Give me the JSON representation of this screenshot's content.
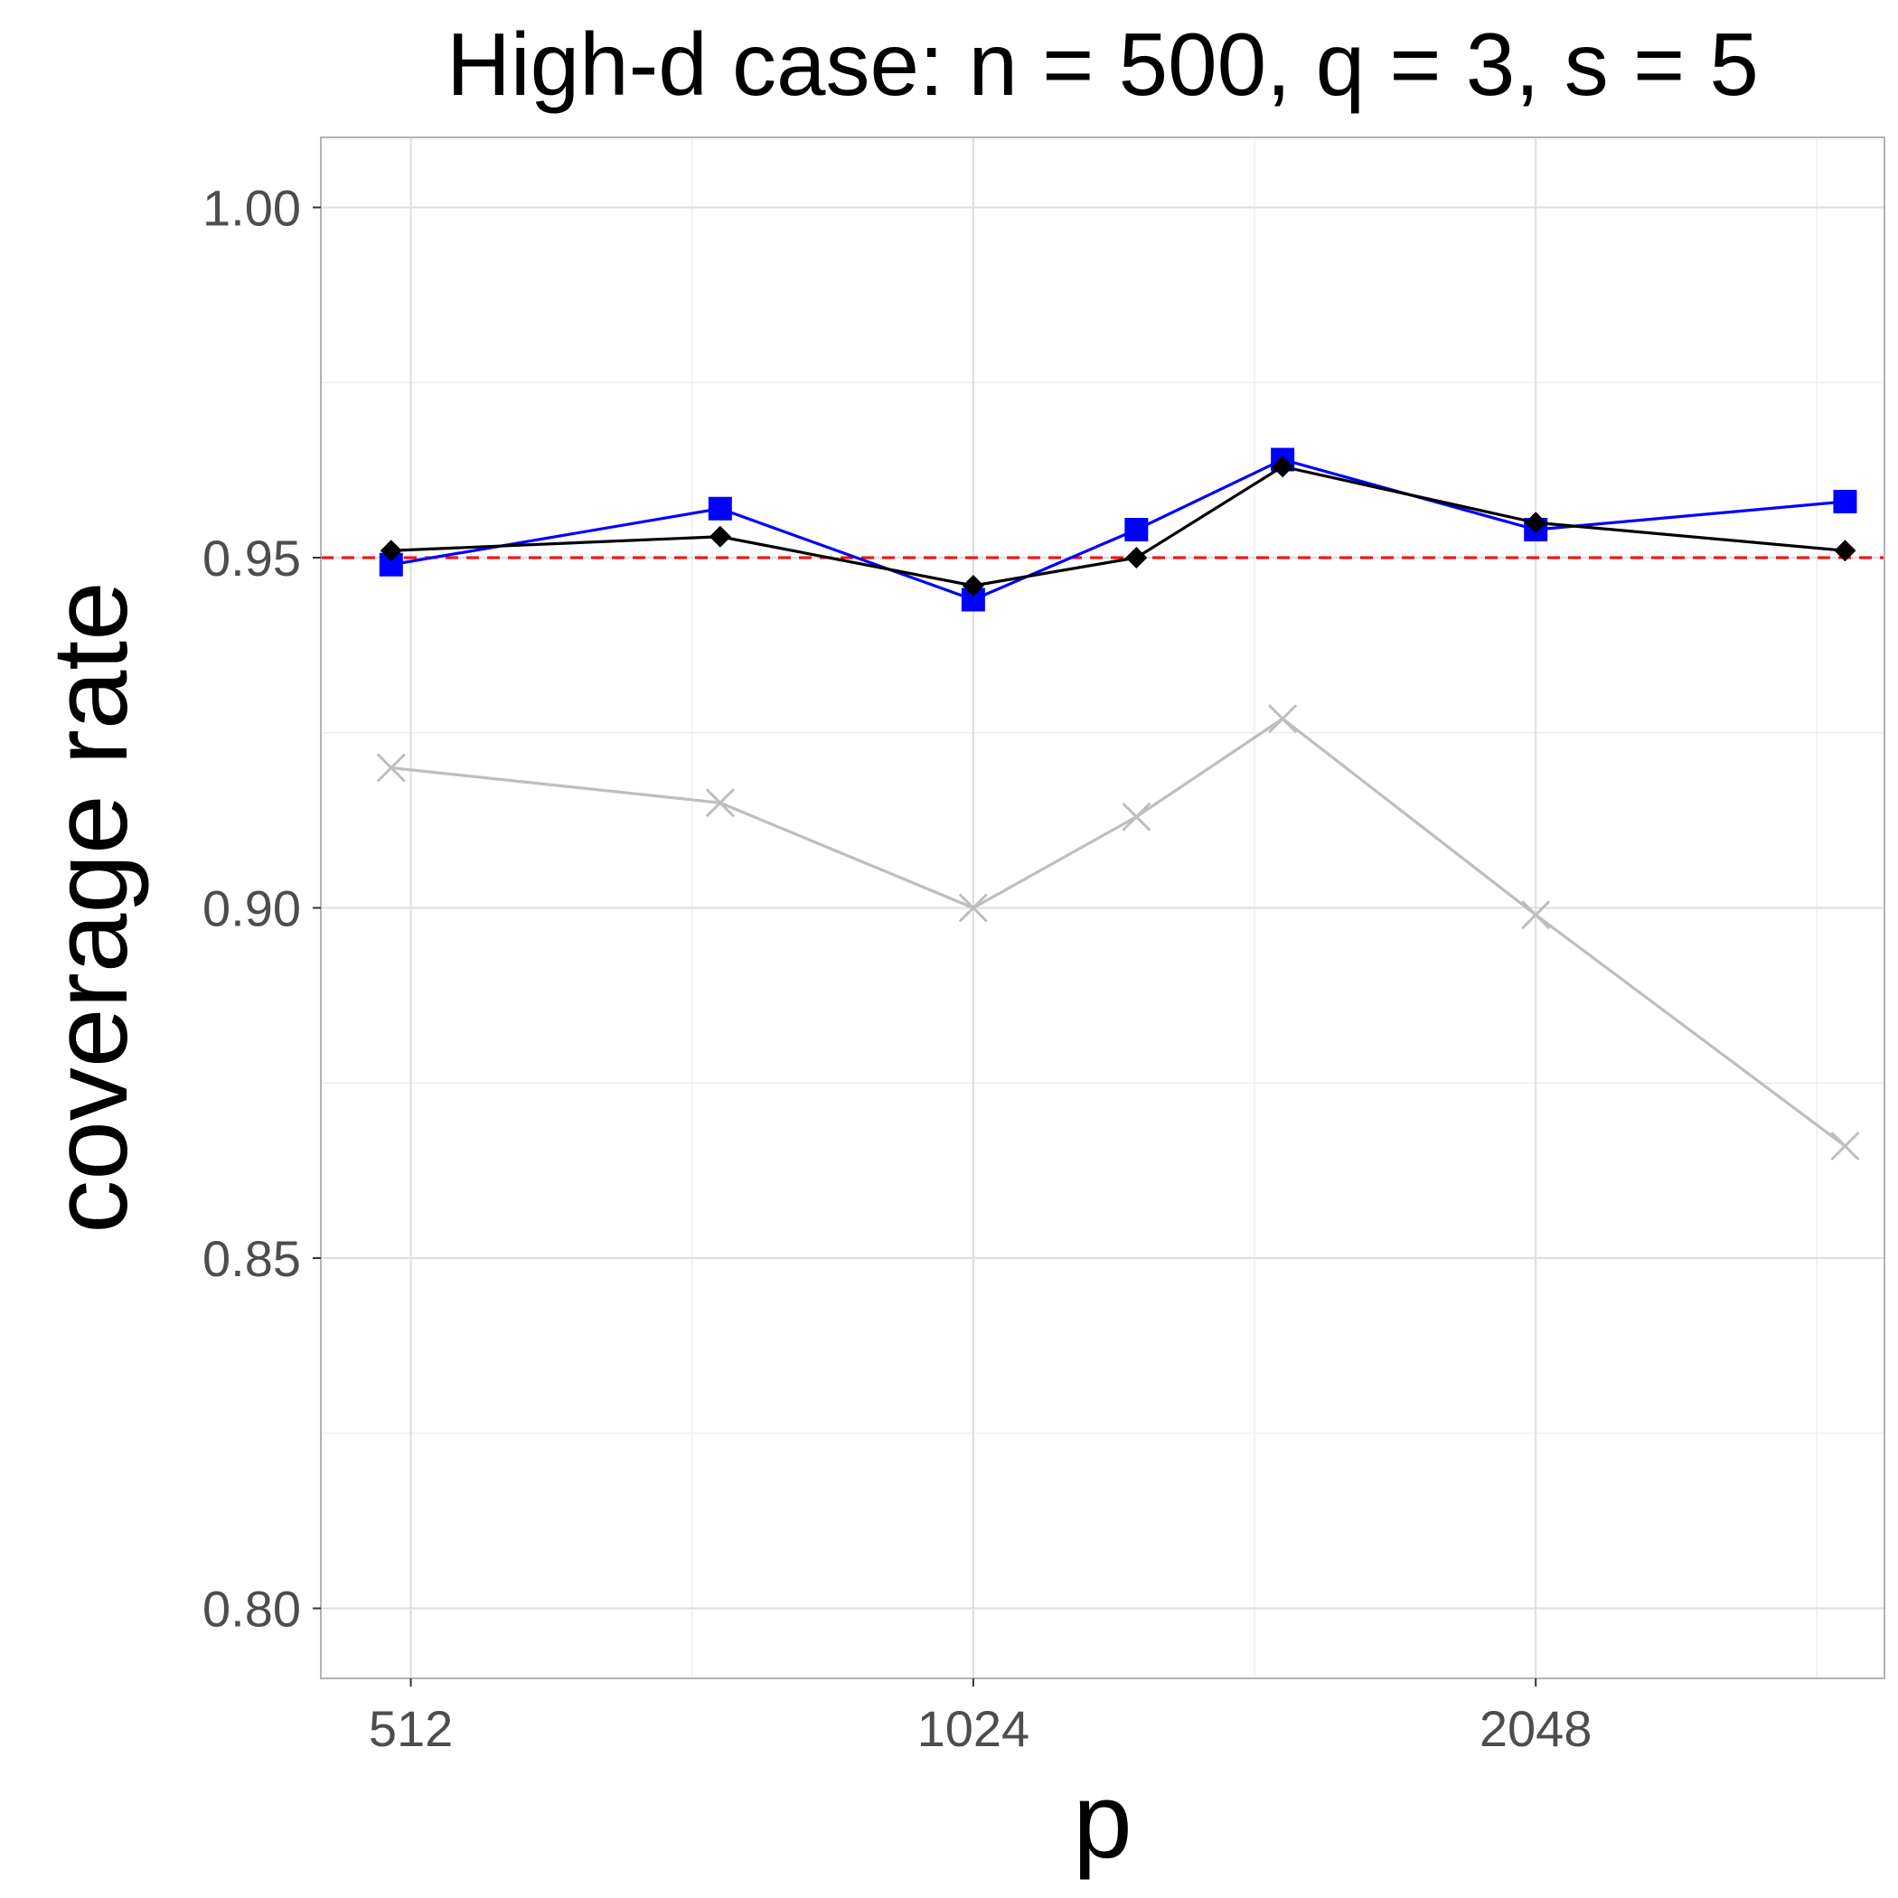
{
  "chart_data": {
    "type": "line",
    "title": "High-d case: n = 500, q = 3, s = 5",
    "xlabel": "p",
    "ylabel": "coverage rate",
    "x_scale": "log2",
    "xlim_log2": [
      8.84,
      11.62
    ],
    "ylim": [
      0.79,
      1.01
    ],
    "x_ticks": [
      512,
      1024,
      2048
    ],
    "x_tick_labels": [
      "512",
      "1024",
      "2048"
    ],
    "y_ticks": [
      0.8,
      0.85,
      0.9,
      0.95,
      1.0
    ],
    "y_tick_labels": [
      "0.80",
      "0.85",
      "0.90",
      "0.95",
      "1.00"
    ],
    "grid": true,
    "reference_line": {
      "y": 0.95,
      "color": "#ff0000",
      "style": "dashed"
    },
    "x_log2_positions": [
      8.965,
      9.55,
      10.0,
      10.29,
      10.55,
      11.0,
      11.55
    ],
    "series": [
      {
        "name": "series-blue-square",
        "color": "#0000ff",
        "marker": "square",
        "values": [
          0.949,
          0.957,
          0.944,
          0.954,
          0.964,
          0.954,
          0.958
        ]
      },
      {
        "name": "series-black-diamond",
        "color": "#000000",
        "marker": "diamond",
        "values": [
          0.951,
          0.953,
          0.946,
          0.95,
          0.963,
          0.955,
          0.951
        ]
      },
      {
        "name": "series-gray-cross",
        "color": "#bebebe",
        "marker": "cross",
        "values": [
          0.92,
          0.915,
          0.9,
          0.913,
          0.927,
          0.899,
          0.866
        ]
      }
    ]
  }
}
